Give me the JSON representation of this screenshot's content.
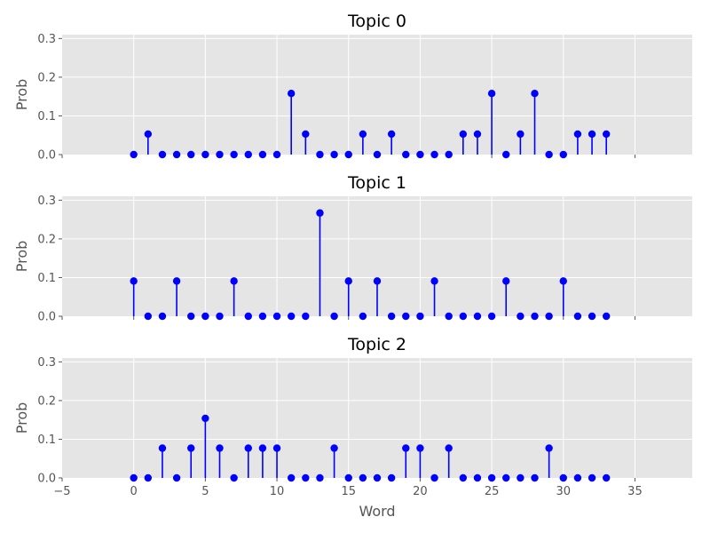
{
  "chart_data": {
    "type": "stem",
    "xlabel": "Word",
    "ylabel": "Prob",
    "xlim": [
      -5,
      39
    ],
    "ylim": [
      0,
      0.31
    ],
    "xticks": [
      -5,
      0,
      5,
      10,
      15,
      20,
      25,
      30,
      35
    ],
    "yticks": [
      0.0,
      0.1,
      0.2,
      0.3
    ],
    "grid": true,
    "color": "#0000ff",
    "background": "#e5e5e5",
    "panels": [
      {
        "title": "Topic 0",
        "x": [
          0,
          1,
          2,
          3,
          4,
          5,
          6,
          7,
          8,
          9,
          10,
          11,
          12,
          13,
          14,
          15,
          16,
          17,
          18,
          19,
          20,
          21,
          22,
          23,
          24,
          25,
          26,
          27,
          28,
          29,
          30,
          31,
          32,
          33
        ],
        "values": [
          0.0,
          0.053,
          0.0,
          0.0,
          0.0,
          0.0,
          0.0,
          0.0,
          0.0,
          0.0,
          0.0,
          0.158,
          0.053,
          0.0,
          0.0,
          0.0,
          0.053,
          0.0,
          0.053,
          0.0,
          0.0,
          0.0,
          0.0,
          0.053,
          0.053,
          0.158,
          0.0,
          0.053,
          0.158,
          0.0,
          0.0,
          0.053,
          0.053,
          0.053
        ]
      },
      {
        "title": "Topic 1",
        "x": [
          0,
          1,
          2,
          3,
          4,
          5,
          6,
          7,
          8,
          9,
          10,
          11,
          12,
          13,
          14,
          15,
          16,
          17,
          18,
          19,
          20,
          21,
          22,
          23,
          24,
          25,
          26,
          27,
          28,
          29,
          30,
          31,
          32,
          33
        ],
        "values": [
          0.091,
          0.0,
          0.0,
          0.091,
          0.0,
          0.0,
          0.0,
          0.091,
          0.0,
          0.0,
          0.0,
          0.0,
          0.0,
          0.267,
          0.0,
          0.091,
          0.0,
          0.091,
          0.0,
          0.0,
          0.0,
          0.091,
          0.0,
          0.0,
          0.0,
          0.0,
          0.091,
          0.0,
          0.0,
          0.0,
          0.091,
          0.0,
          0.0,
          0.0
        ]
      },
      {
        "title": "Topic 2",
        "x": [
          0,
          1,
          2,
          3,
          4,
          5,
          6,
          7,
          8,
          9,
          10,
          11,
          12,
          13,
          14,
          15,
          16,
          17,
          18,
          19,
          20,
          21,
          22,
          23,
          24,
          25,
          26,
          27,
          28,
          29,
          30,
          31,
          32,
          33
        ],
        "values": [
          0.0,
          0.0,
          0.077,
          0.0,
          0.077,
          0.154,
          0.077,
          0.0,
          0.077,
          0.077,
          0.077,
          0.0,
          0.0,
          0.0,
          0.077,
          0.0,
          0.0,
          0.0,
          0.0,
          0.077,
          0.077,
          0.0,
          0.077,
          0.0,
          0.0,
          0.0,
          0.0,
          0.0,
          0.0,
          0.077,
          0.0,
          0.0,
          0.0,
          0.0
        ]
      }
    ]
  }
}
